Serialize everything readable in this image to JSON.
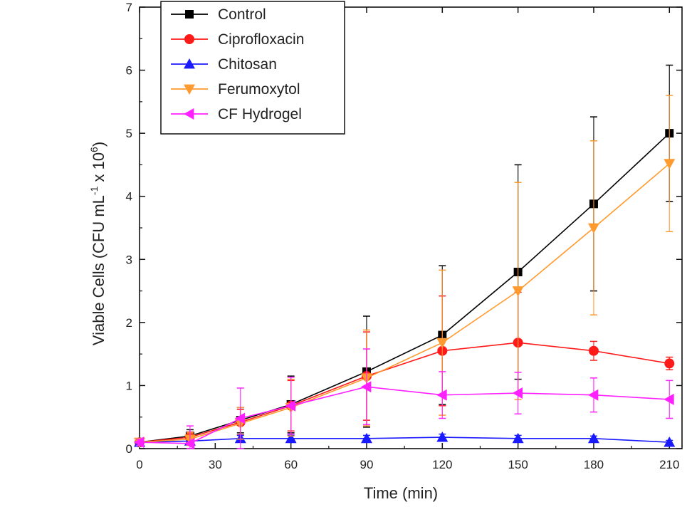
{
  "chart_data": {
    "type": "line",
    "title": "",
    "xlabel": "Time (min)",
    "ylabel": "Viable Cells (CFU mL",
    "ylabel_sup1": "-1",
    "ylabel_mid": " x 10",
    "ylabel_sup2": "6",
    "ylabel_end": ")",
    "xlim": [
      0,
      215
    ],
    "ylim": [
      0,
      7
    ],
    "xticks": [
      0,
      30,
      60,
      90,
      120,
      150,
      180,
      210
    ],
    "yticks": [
      0,
      1,
      2,
      3,
      4,
      5,
      6,
      7
    ],
    "grid": false,
    "legend_position": "top-left",
    "x": [
      0,
      20,
      40,
      60,
      90,
      120,
      150,
      180,
      210
    ],
    "series": [
      {
        "name": "Control",
        "color": "#000000",
        "marker": "square",
        "values": [
          0.1,
          0.2,
          0.45,
          0.7,
          1.22,
          1.8,
          2.8,
          3.88,
          5.0
        ],
        "errors": [
          0.05,
          0.1,
          0.2,
          0.45,
          0.88,
          1.1,
          1.7,
          1.38,
          1.08
        ]
      },
      {
        "name": "Ciprofloxacin",
        "color": "#ff1a1a",
        "marker": "circle",
        "values": [
          0.1,
          0.18,
          0.42,
          0.68,
          1.15,
          1.55,
          1.68,
          1.55,
          1.35
        ],
        "errors": [
          0.05,
          0.08,
          0.2,
          0.4,
          0.7,
          0.87,
          0.8,
          0.15,
          0.1
        ]
      },
      {
        "name": "Chitosan",
        "color": "#1a1aff",
        "marker": "triangle-up",
        "values": [
          0.1,
          0.12,
          0.16,
          0.16,
          0.16,
          0.18,
          0.16,
          0.16,
          0.1
        ],
        "errors": [
          0.03,
          0.04,
          0.05,
          0.05,
          0.05,
          0.05,
          0.05,
          0.04,
          0.03
        ]
      },
      {
        "name": "Ferumoxytol",
        "color": "#ff9a2e",
        "marker": "triangle-down",
        "values": [
          0.1,
          0.15,
          0.4,
          0.65,
          1.12,
          1.68,
          2.5,
          3.5,
          4.52
        ],
        "errors": [
          0.05,
          0.1,
          0.25,
          0.45,
          0.76,
          1.15,
          1.72,
          1.38,
          1.08
        ]
      },
      {
        "name": "CF Hydrogel",
        "color": "#ff20ff",
        "marker": "triangle-left",
        "values": [
          0.1,
          0.08,
          0.48,
          0.68,
          0.98,
          0.85,
          0.88,
          0.85,
          0.78
        ],
        "errors": [
          0.05,
          0.28,
          0.48,
          0.45,
          0.6,
          0.37,
          0.33,
          0.27,
          0.3
        ]
      }
    ]
  }
}
